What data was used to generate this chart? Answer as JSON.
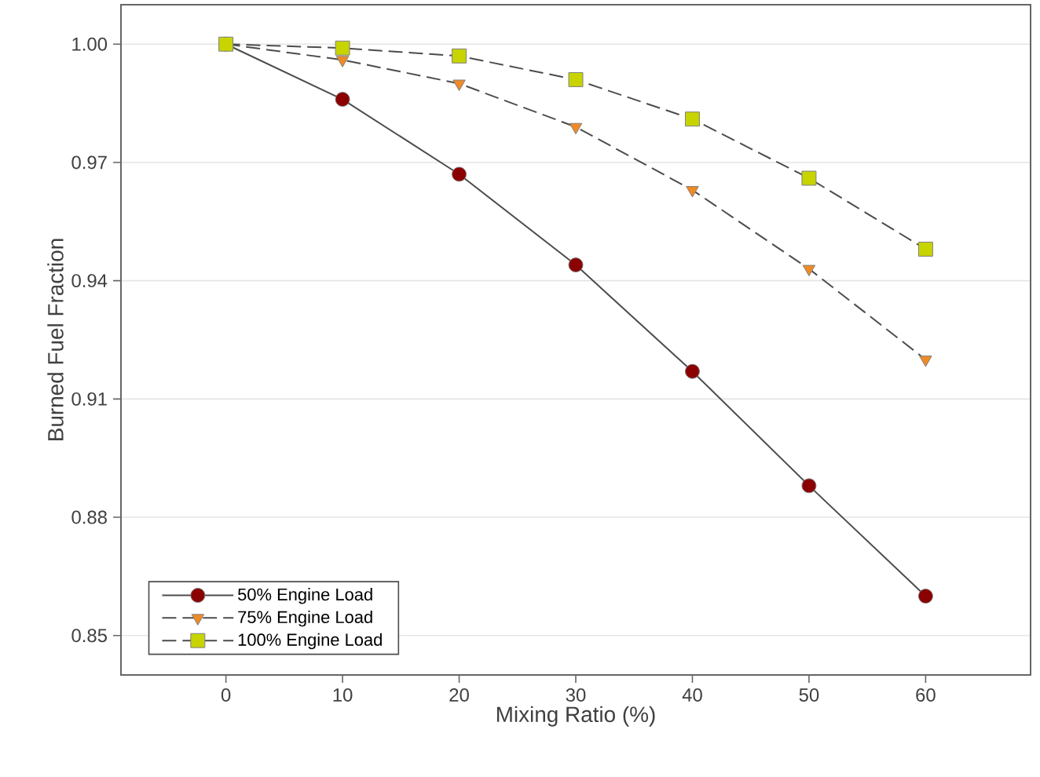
{
  "chart_data": {
    "type": "line",
    "xlabel": "Mixing Ratio (%)",
    "ylabel": "Burned Fuel Fraction",
    "x": [
      0,
      10,
      20,
      30,
      40,
      50,
      60
    ],
    "series": [
      {
        "name": "50% Engine Load",
        "color": "#8b0000",
        "marker": "circle",
        "line_style": "solid",
        "values": [
          1.0,
          0.986,
          0.967,
          0.944,
          0.917,
          0.888,
          0.86
        ]
      },
      {
        "name": "75% Engine Load",
        "color": "#f08a24",
        "marker": "triangle",
        "line_style": "dashed",
        "values": [
          1.0,
          0.996,
          0.99,
          0.979,
          0.963,
          0.943,
          0.92
        ]
      },
      {
        "name": "100% Engine Load",
        "color": "#c8d400",
        "marker": "square",
        "line_style": "dashed",
        "values": [
          1.0,
          0.999,
          0.997,
          0.991,
          0.981,
          0.966,
          0.948
        ]
      }
    ],
    "xlim": [
      -9,
      69
    ],
    "xticks": [
      0,
      10,
      20,
      30,
      40,
      50,
      60
    ],
    "ylim": [
      0.84,
      1.01
    ],
    "yticks": [
      {
        "value": 0.85,
        "label": "0.85"
      },
      {
        "value": 0.88,
        "label": "0.88"
      },
      {
        "value": 0.91,
        "label": "0.91"
      },
      {
        "value": 0.94,
        "label": "0.94"
      },
      {
        "value": 0.97,
        "label": "0.97"
      },
      {
        "value": 1.0,
        "label": "1.00"
      }
    ],
    "grid": "y",
    "legend": "bottom left"
  }
}
